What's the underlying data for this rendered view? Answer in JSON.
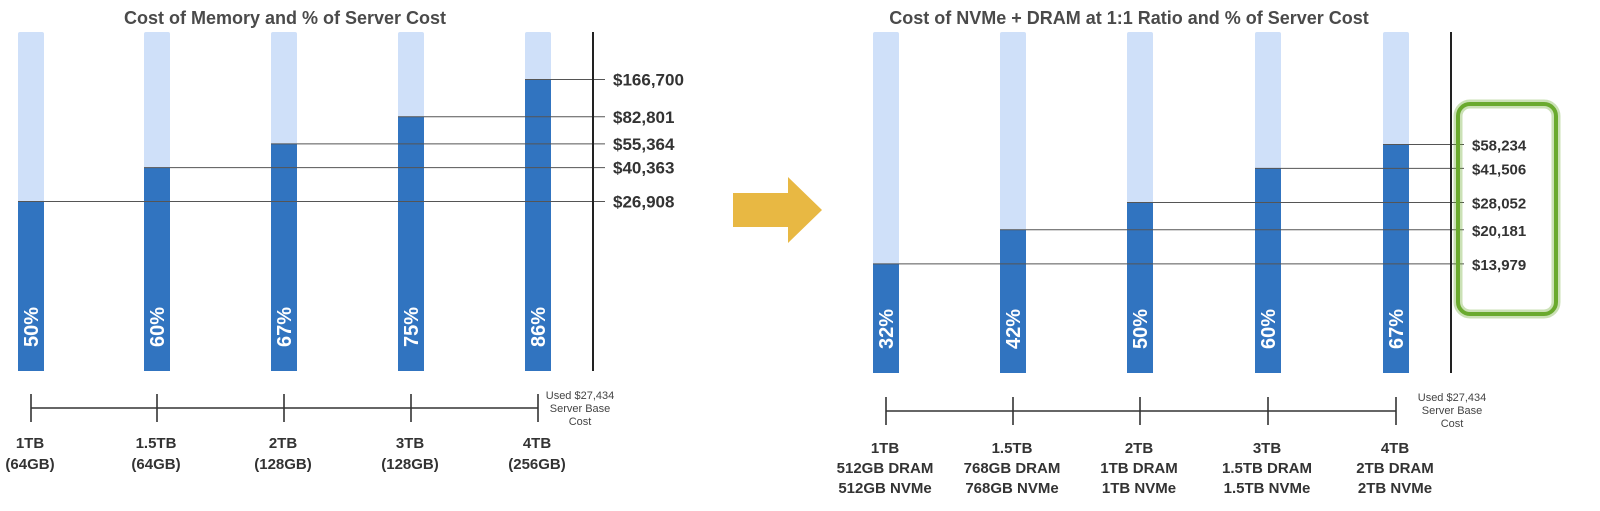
{
  "colors": {
    "bar_fill": "#3174c0",
    "bar_track": "#cfe0f9",
    "arrow": "#e8b843",
    "highlight": "#6aaa2e",
    "text": "#333333",
    "title": "#4a4a4a"
  },
  "chart_data": [
    {
      "type": "bar",
      "title": "Cost of Memory and % of Server Cost",
      "categories": [
        [
          "1TB",
          "(64GB)"
        ],
        [
          "1.5TB",
          "(64GB)"
        ],
        [
          "2TB",
          "(128GB)"
        ],
        [
          "3TB",
          "(128GB)"
        ],
        [
          "4TB",
          "(256GB)"
        ]
      ],
      "values": [
        50,
        60,
        67,
        75,
        86
      ],
      "value_labels": [
        "50%",
        "60%",
        "67%",
        "75%",
        "86%"
      ],
      "costs": [
        "$26,908",
        "$40,363",
        "$55,364",
        "$82,801",
        "$166,700"
      ],
      "ylim": [
        0,
        100
      ],
      "note": [
        "Used $27,434",
        "Server Base",
        "Cost"
      ],
      "highlight_costs": false
    },
    {
      "type": "bar",
      "title": "Cost of NVMe + DRAM at 1:1 Ratio and % of Server Cost",
      "categories": [
        [
          "1TB",
          "512GB DRAM",
          "512GB NVMe"
        ],
        [
          "1.5TB",
          "768GB DRAM",
          "768GB NVMe"
        ],
        [
          "2TB",
          "1TB DRAM",
          "1TB NVMe"
        ],
        [
          "3TB",
          "1.5TB DRAM",
          "1.5TB NVMe"
        ],
        [
          "4TB",
          "2TB DRAM",
          "2TB NVMe"
        ]
      ],
      "values": [
        32,
        42,
        50,
        60,
        67
      ],
      "value_labels": [
        "32%",
        "42%",
        "50%",
        "60%",
        "67%"
      ],
      "costs": [
        "$13,979",
        "$20,181",
        "$28,052",
        "$41,506",
        "$58,234"
      ],
      "ylim": [
        0,
        100
      ],
      "note": [
        "Used $27,434",
        "Server Base",
        "Cost"
      ],
      "highlight_costs": true
    }
  ],
  "transition_icon": "right-arrow-icon"
}
